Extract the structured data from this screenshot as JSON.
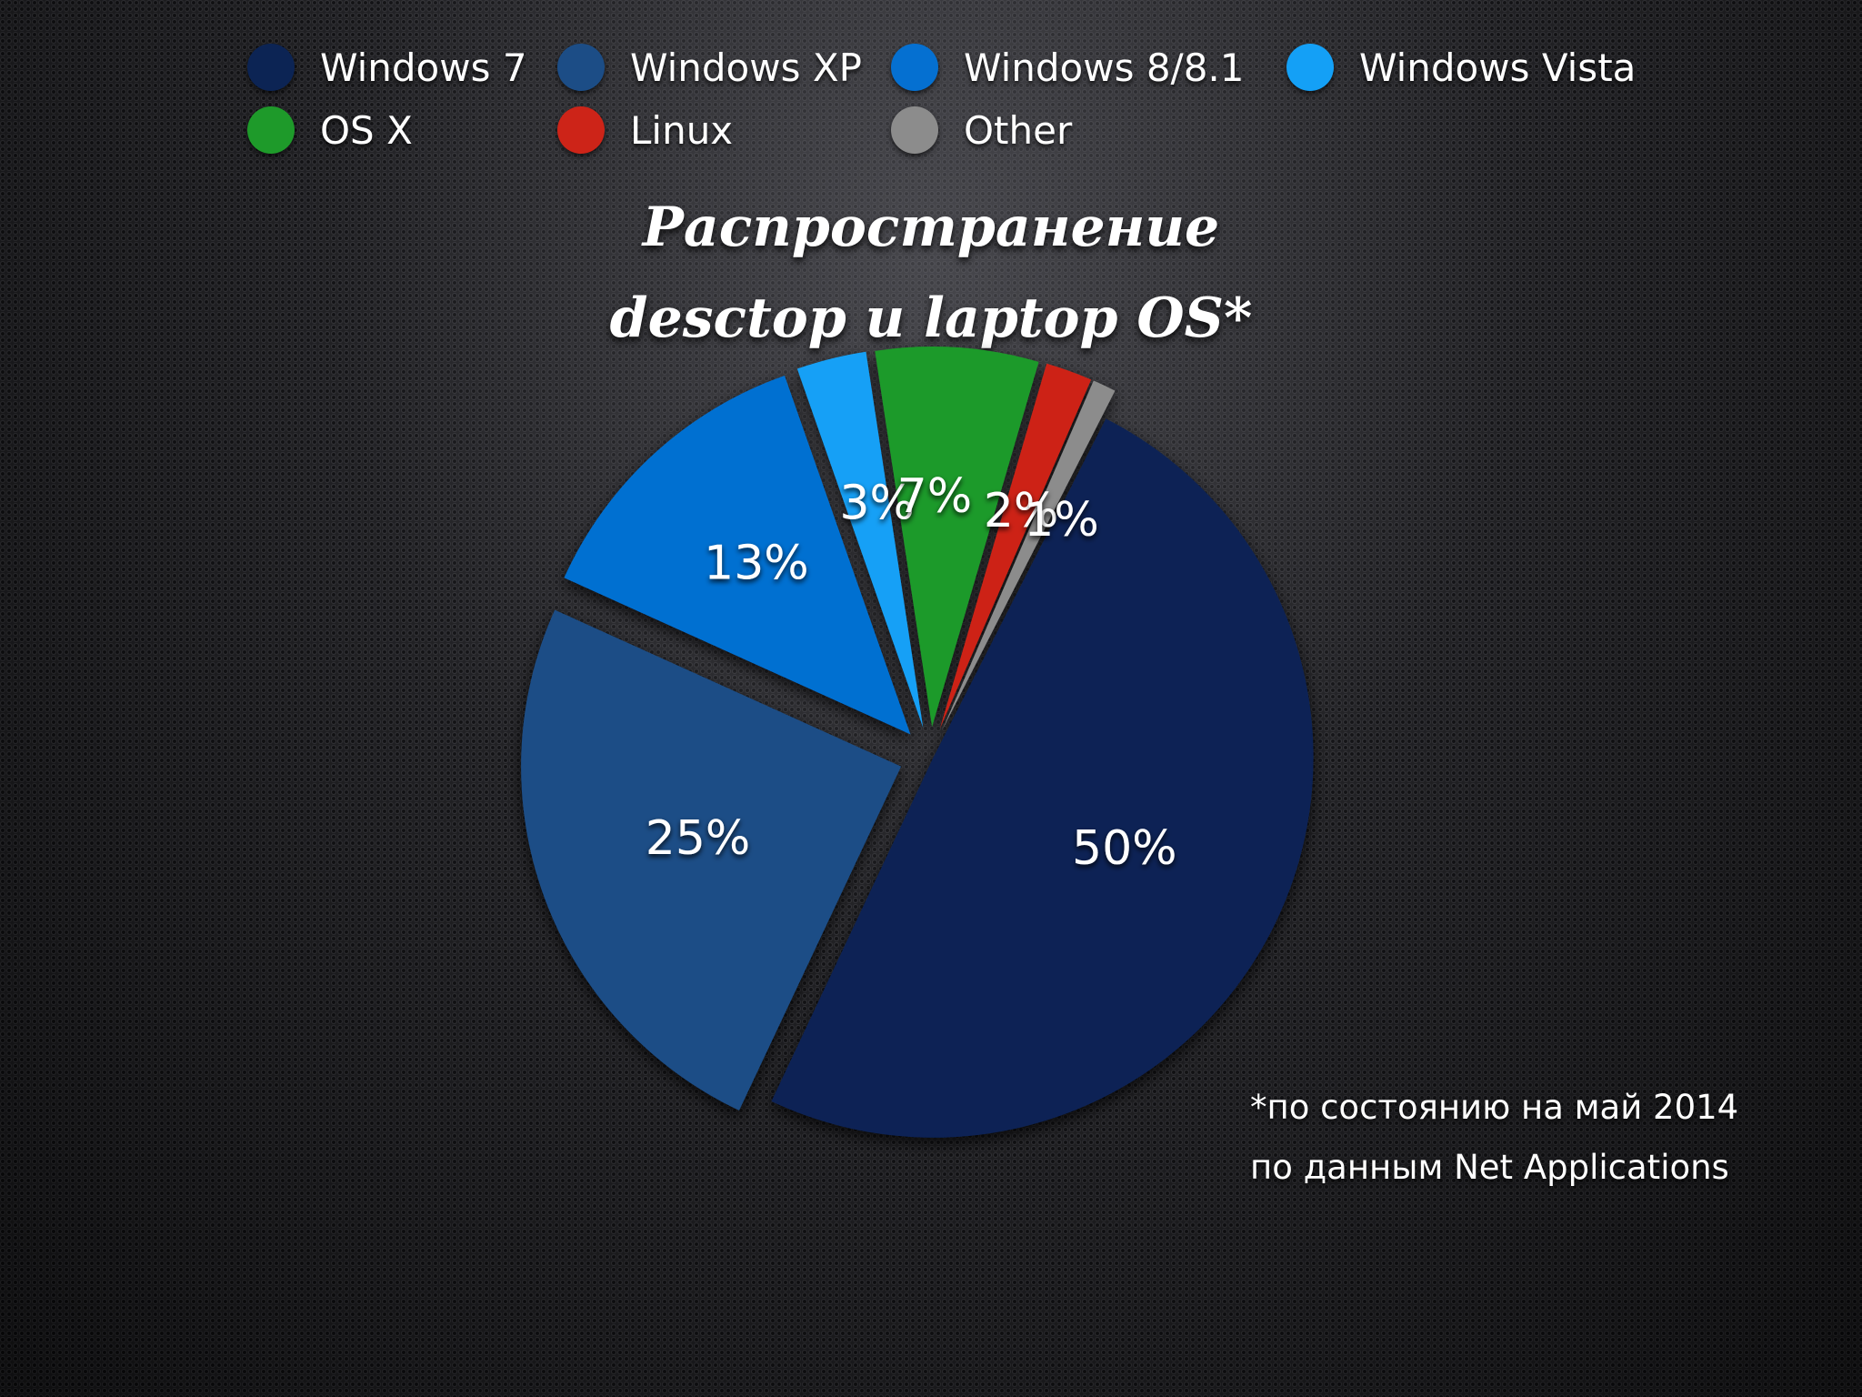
{
  "chart_data": {
    "type": "pie",
    "title_lines": [
      "Распространение",
      "desctop и laptop OS*"
    ],
    "legend_placement": "top",
    "series": [
      {
        "name": "Windows 7",
        "value": 50,
        "label": "50%",
        "color": "#0c2454"
      },
      {
        "name": "Windows XP",
        "value": 25,
        "label": "25%",
        "color": "#1c4d86"
      },
      {
        "name": "Windows 8/8.1",
        "value": 13,
        "label": "13%",
        "color": "#0570d1"
      },
      {
        "name": "Windows Vista",
        "value": 3,
        "label": "3%",
        "color": "#14a0f6"
      },
      {
        "name": "OS X",
        "value": 7,
        "label": "7%",
        "color": "#1e9a2a"
      },
      {
        "name": "Linux",
        "value": 2,
        "label": "2%",
        "color": "#cd2418"
      },
      {
        "name": "Other",
        "value": 1,
        "label": "1%",
        "color": "#8c8c8c"
      }
    ]
  },
  "footnote": {
    "line1": "*по состоянию на май 2014",
    "line2": "по данным Net Applications"
  }
}
